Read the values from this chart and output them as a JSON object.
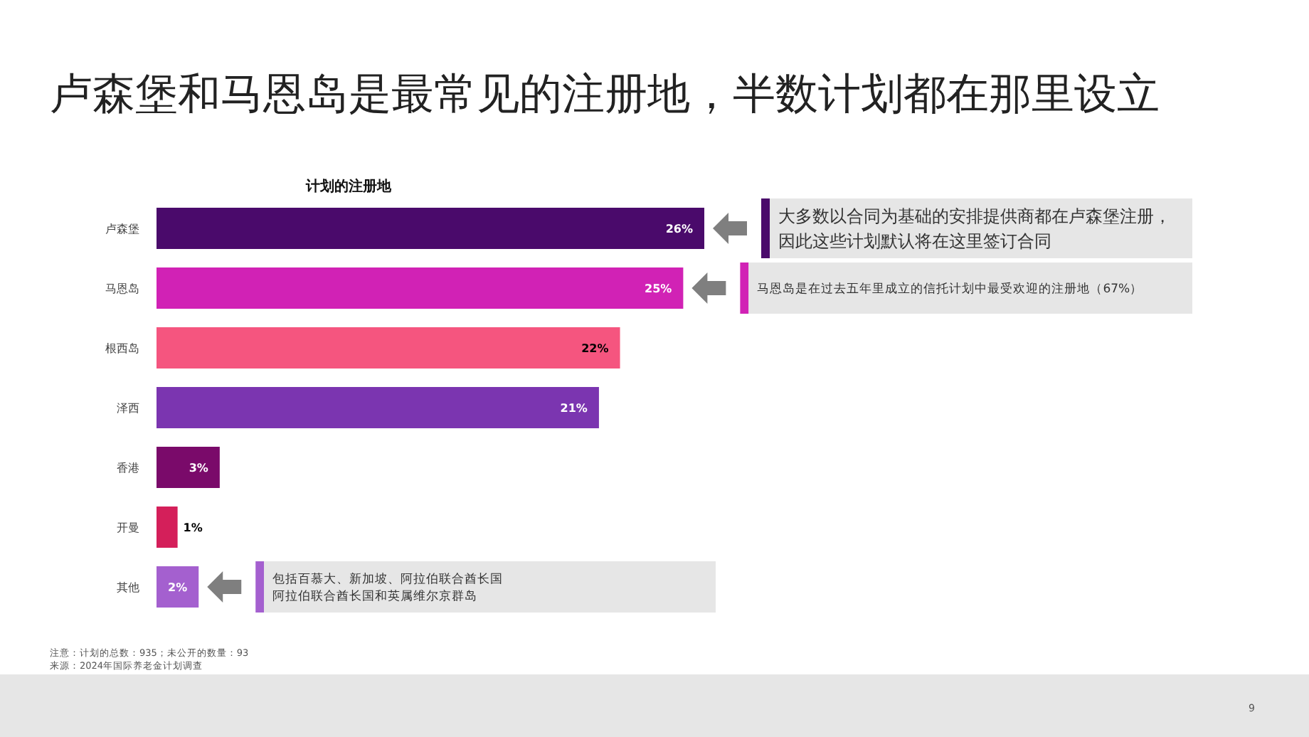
{
  "chart_data": {
    "type": "bar",
    "orientation": "horizontal",
    "title": "卢森堡和马恩岛是最常见的注册地，半数计划都在那里设立",
    "subtitle": "计划的注册地",
    "categories": [
      "卢森堡",
      "马恩岛",
      "根西岛",
      "泽西",
      "香港",
      "开曼",
      "其他"
    ],
    "values": [
      26,
      25,
      22,
      21,
      3,
      1,
      2
    ],
    "value_labels": [
      "26%",
      "25%",
      "22%",
      "21%",
      "3%",
      "1%",
      "2%"
    ],
    "colors": [
      "#4a0a6b",
      "#d122b5",
      "#f5557f",
      "#7b35b0",
      "#7a0a6a",
      "#d41f5a",
      "#a460cf"
    ],
    "annotations": [
      "大多数以合同为基础的安排提供商都在卢森堡注册，因此这些计划默认将在这里签订合同",
      "马恩岛是在过去五年里成立的信托计划中最受欢迎的注册地（67%）",
      "包括百慕大、新加坡、阿拉伯联合酋长国阿拉伯联合酋长国和英属维尔京群岛",
      "注意：计划的总数：935；未公开的数量：93",
      "来源：2024年国际养老金计划调查",
      "9"
    ]
  }
}
